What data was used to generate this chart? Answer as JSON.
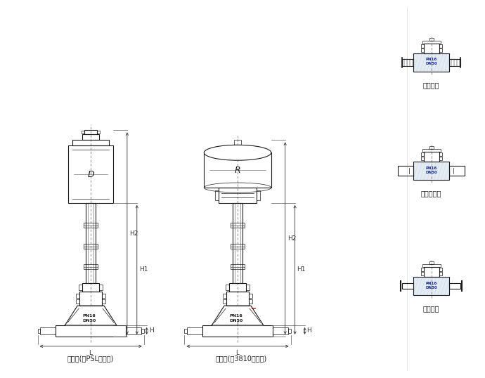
{
  "bg_color": "#ffffff",
  "line_color": "#1a1a1a",
  "dim_color": "#333333",
  "label1": "低温型(配PSL执行器)",
  "label2": "低温型(配3810执行器)",
  "label_lujin": "螺纹连接",
  "label_chengcha": "承插焊连接",
  "label_duihan": "对焊连接",
  "dim_D": "D",
  "dim_R": "R",
  "dim_H1": "H1",
  "dim_H2": "H2",
  "dim_H": "H",
  "dim_L": "L"
}
